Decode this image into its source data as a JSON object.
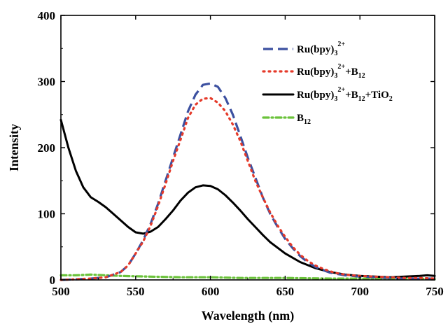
{
  "chart_data": {
    "type": "line",
    "xlabel": "Wavelength (nm)",
    "ylabel": "Intensity",
    "xlim": [
      500,
      750
    ],
    "ylim": [
      0,
      400
    ],
    "xticks": [
      "500",
      "550",
      "600",
      "650",
      "700",
      "750"
    ],
    "yticks": [
      "0",
      "100",
      "200",
      "300",
      "400"
    ],
    "grid": false,
    "legend_position": "top-right",
    "series": [
      {
        "name": "Ru(bpy)3 2+",
        "name_parts": [
          {
            "t": "Ru(bpy)",
            "s": "base"
          },
          {
            "t": "3",
            "s": "sub"
          },
          {
            "t": "2+",
            "s": "sup"
          }
        ],
        "color": "#3c50a0",
        "style": "dashed",
        "x": [
          500,
          510,
          520,
          530,
          540,
          545,
          550,
          555,
          560,
          565,
          570,
          575,
          580,
          585,
          590,
          595,
          600,
          605,
          610,
          615,
          620,
          625,
          630,
          635,
          640,
          645,
          650,
          655,
          660,
          665,
          670,
          675,
          680,
          685,
          690,
          695,
          700,
          710,
          720,
          730,
          740,
          750
        ],
        "y": [
          0,
          1,
          2,
          4,
          12,
          22,
          40,
          60,
          85,
          115,
          150,
          185,
          220,
          255,
          280,
          295,
          297,
          292,
          275,
          250,
          218,
          185,
          155,
          125,
          100,
          80,
          62,
          48,
          36,
          27,
          20,
          15,
          11,
          9,
          7,
          6,
          5,
          4,
          3,
          2,
          2,
          2
        ]
      },
      {
        "name": "Ru(bpy)3 2+ + B12",
        "name_parts": [
          {
            "t": "Ru(bpy)",
            "s": "base"
          },
          {
            "t": "3",
            "s": "sub"
          },
          {
            "t": "2+",
            "s": "sup"
          },
          {
            "t": "+B",
            "s": "base"
          },
          {
            "t": "12",
            "s": "sub"
          }
        ],
        "color": "#e53a2a",
        "style": "dotted",
        "x": [
          500,
          510,
          520,
          530,
          540,
          545,
          550,
          555,
          560,
          565,
          570,
          575,
          580,
          585,
          590,
          595,
          600,
          605,
          610,
          615,
          620,
          625,
          630,
          635,
          640,
          645,
          650,
          655,
          660,
          665,
          670,
          675,
          680,
          685,
          690,
          695,
          700,
          710,
          720,
          730,
          740,
          750
        ],
        "y": [
          0,
          1,
          2,
          4,
          12,
          22,
          40,
          58,
          82,
          112,
          145,
          180,
          212,
          245,
          265,
          274,
          275,
          268,
          255,
          235,
          210,
          180,
          150,
          125,
          102,
          82,
          65,
          50,
          38,
          29,
          22,
          17,
          13,
          10,
          8,
          7,
          6,
          5,
          4,
          3,
          3,
          2
        ]
      },
      {
        "name": "Ru(bpy)3 2+ + B12 + TiO2",
        "name_parts": [
          {
            "t": "Ru(bpy)",
            "s": "base"
          },
          {
            "t": "3",
            "s": "sub"
          },
          {
            "t": "2+",
            "s": "sup"
          },
          {
            "t": "+B",
            "s": "base"
          },
          {
            "t": "12",
            "s": "sub"
          },
          {
            "t": "+TiO",
            "s": "base"
          },
          {
            "t": "2",
            "s": "sub"
          }
        ],
        "color": "#000000",
        "style": "solid",
        "x": [
          500,
          505,
          510,
          515,
          520,
          525,
          530,
          535,
          540,
          545,
          550,
          555,
          560,
          565,
          570,
          575,
          580,
          585,
          590,
          595,
          600,
          605,
          610,
          615,
          620,
          625,
          630,
          635,
          640,
          650,
          660,
          670,
          680,
          690,
          700,
          710,
          720,
          730,
          740,
          745,
          750
        ],
        "y": [
          242,
          200,
          165,
          140,
          125,
          118,
          110,
          100,
          90,
          80,
          72,
          70,
          73,
          80,
          92,
          105,
          120,
          132,
          140,
          143,
          142,
          137,
          128,
          117,
          105,
          92,
          80,
          68,
          57,
          40,
          27,
          18,
          12,
          8,
          6,
          5,
          4,
          5,
          6,
          7,
          6
        ]
      },
      {
        "name": "B12",
        "name_parts": [
          {
            "t": "B",
            "s": "base"
          },
          {
            "t": "12",
            "s": "sub"
          }
        ],
        "color": "#6ac23a",
        "style": "dash-dot",
        "x": [
          500,
          510,
          520,
          530,
          540,
          560,
          580,
          600,
          620,
          650,
          680,
          700,
          720,
          740,
          750
        ],
        "y": [
          7,
          7,
          8,
          7,
          6,
          5,
          4,
          4,
          3,
          3,
          2,
          2,
          2,
          2,
          1
        ]
      }
    ]
  }
}
